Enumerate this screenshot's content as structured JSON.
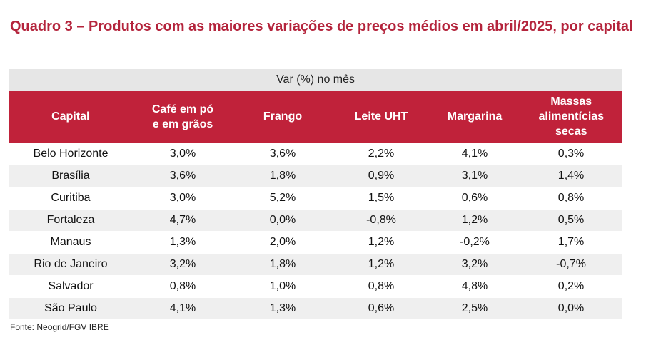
{
  "title": "Quadro 3 – Produtos com as maiores variações de preços médios em abril/2025, por capital",
  "table": {
    "group_header": "Var (%) no mês",
    "columns": [
      "Capital",
      "Café em pó e em grãos",
      "Frango",
      "Leite UHT",
      "Margarina",
      "Massas alimentícias secas"
    ],
    "rows": [
      [
        "Belo Horizonte",
        "3,0%",
        "3,6%",
        "2,2%",
        "4,1%",
        "0,3%"
      ],
      [
        "Brasília",
        "3,6%",
        "1,8%",
        "0,9%",
        "3,1%",
        "1,4%"
      ],
      [
        "Curitiba",
        "3,0%",
        "5,2%",
        "1,5%",
        "0,6%",
        "0,8%"
      ],
      [
        "Fortaleza",
        "4,7%",
        "0,0%",
        "-0,8%",
        "1,2%",
        "0,5%"
      ],
      [
        "Manaus",
        "1,3%",
        "2,0%",
        "1,2%",
        "-0,2%",
        "1,7%"
      ],
      [
        "Rio de Janeiro",
        "3,2%",
        "1,8%",
        "1,2%",
        "3,2%",
        "-0,7%"
      ],
      [
        "Salvador",
        "0,8%",
        "1,0%",
        "0,8%",
        "4,8%",
        "0,2%"
      ],
      [
        "São Paulo",
        "4,1%",
        "1,3%",
        "0,6%",
        "2,5%",
        "0,0%"
      ]
    ]
  },
  "source": "Fonte: Neogrid/FGV IBRE",
  "colors": {
    "accent": "#c0223a",
    "title": "#b4243c",
    "stripe": "#efefef"
  }
}
